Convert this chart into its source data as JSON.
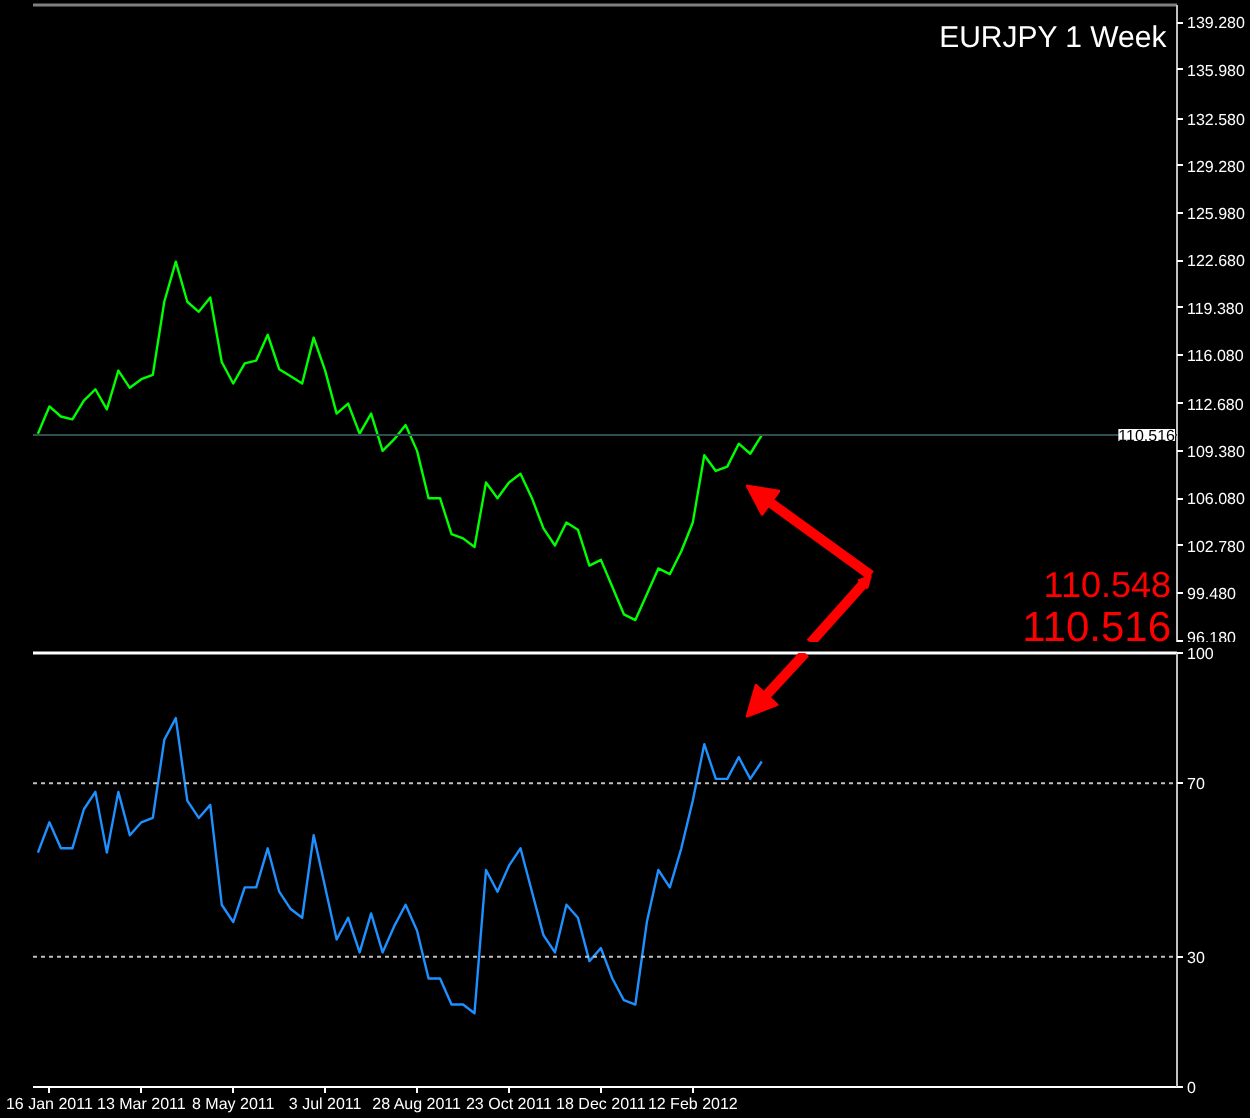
{
  "chart_data": [
    {
      "type": "line",
      "title": "EURJPY 1 Week",
      "x": [
        "2011-01-09",
        "2011-01-16",
        "2011-01-23",
        "2011-01-30",
        "2011-02-06",
        "2011-02-13",
        "2011-02-20",
        "2011-02-27",
        "2011-03-06",
        "2011-03-13",
        "2011-03-20",
        "2011-03-27",
        "2011-04-03",
        "2011-04-10",
        "2011-04-17",
        "2011-04-24",
        "2011-05-01",
        "2011-05-08",
        "2011-05-15",
        "2011-05-22",
        "2011-05-29",
        "2011-06-05",
        "2011-06-12",
        "2011-06-19",
        "2011-06-26",
        "2011-07-03",
        "2011-07-10",
        "2011-07-17",
        "2011-07-24",
        "2011-07-31",
        "2011-08-07",
        "2011-08-14",
        "2011-08-21",
        "2011-08-28",
        "2011-09-04",
        "2011-09-11",
        "2011-09-18",
        "2011-09-25",
        "2011-10-02",
        "2011-10-09",
        "2011-10-16",
        "2011-10-23",
        "2011-10-30",
        "2011-11-06",
        "2011-11-13",
        "2011-11-20",
        "2011-11-27",
        "2011-12-04",
        "2011-12-11",
        "2011-12-18",
        "2011-12-25",
        "2012-01-01",
        "2012-01-08",
        "2012-01-15",
        "2012-01-22",
        "2012-01-29",
        "2012-02-05",
        "2012-02-12",
        "2012-02-19",
        "2012-02-26",
        "2012-03-04",
        "2012-03-11",
        "2012-03-18",
        "2012-03-25"
      ],
      "series": [
        {
          "color": "#00ff00",
          "values": [
            110.6,
            112.5,
            111.8,
            111.6,
            112.9,
            113.7,
            112.3,
            115.0,
            113.8,
            114.4,
            114.7,
            119.8,
            122.6,
            119.8,
            119.1,
            120.1,
            115.6,
            114.1,
            115.5,
            115.7,
            117.5,
            115.1,
            114.6,
            114.1,
            117.3,
            115.0,
            112.0,
            112.7,
            110.6,
            112.0,
            109.4,
            110.2,
            111.2,
            109.4,
            106.1,
            106.1,
            103.6,
            103.3,
            102.7,
            107.2,
            106.1,
            107.2,
            107.8,
            106.1,
            104.0,
            102.8,
            104.4,
            103.9,
            101.4,
            101.8,
            99.9,
            98.0,
            97.6,
            99.4,
            101.2,
            100.8,
            102.4,
            104.4,
            109.1,
            108.0,
            108.3,
            109.9,
            109.2,
            110.5
          ]
        }
      ],
      "xlim": [
        "2011-01-06",
        "2012-12-03"
      ],
      "ylim": [
        96.0,
        140.5
      ],
      "yticks": [
        {
          "value": 96.18,
          "label": "96.180"
        },
        {
          "value": 99.48,
          "label": "99.480"
        },
        {
          "value": 102.78,
          "label": "102.780"
        },
        {
          "value": 106.08,
          "label": "106.080"
        },
        {
          "value": 109.38,
          "label": "109.380"
        },
        {
          "value": 112.68,
          "label": "112.680"
        },
        {
          "value": 116.08,
          "label": "116.080"
        },
        {
          "value": 119.38,
          "label": "119.380"
        },
        {
          "value": 122.68,
          "label": "122.680"
        },
        {
          "value": 125.98,
          "label": "125.980"
        },
        {
          "value": 129.28,
          "label": "129.280"
        },
        {
          "value": 132.58,
          "label": "132.580"
        },
        {
          "value": 135.98,
          "label": "135.980"
        },
        {
          "value": 139.28,
          "label": "139.280"
        }
      ],
      "ref_lines": [
        {
          "axis": "y",
          "value": 110.516,
          "label": "110.516",
          "color": "#2f4f4f"
        }
      ],
      "annotations": [
        "110.548",
        "110.516"
      ],
      "tick_labels": "y"
    },
    {
      "type": "line",
      "x": [
        "2011-01-09",
        "2011-01-16",
        "2011-01-23",
        "2011-01-30",
        "2011-02-06",
        "2011-02-13",
        "2011-02-20",
        "2011-02-27",
        "2011-03-06",
        "2011-03-13",
        "2011-03-20",
        "2011-03-27",
        "2011-04-03",
        "2011-04-10",
        "2011-04-17",
        "2011-04-24",
        "2011-05-01",
        "2011-05-08",
        "2011-05-15",
        "2011-05-22",
        "2011-05-29",
        "2011-06-05",
        "2011-06-12",
        "2011-06-19",
        "2011-06-26",
        "2011-07-03",
        "2011-07-10",
        "2011-07-17",
        "2011-07-24",
        "2011-07-31",
        "2011-08-07",
        "2011-08-14",
        "2011-08-21",
        "2011-08-28",
        "2011-09-04",
        "2011-09-11",
        "2011-09-18",
        "2011-09-25",
        "2011-10-02",
        "2011-10-09",
        "2011-10-16",
        "2011-10-23",
        "2011-10-30",
        "2011-11-06",
        "2011-11-13",
        "2011-11-20",
        "2011-11-27",
        "2011-12-04",
        "2011-12-11",
        "2011-12-18",
        "2011-12-25",
        "2012-01-01",
        "2012-01-08",
        "2012-01-15",
        "2012-01-22",
        "2012-01-29",
        "2012-02-05",
        "2012-02-12",
        "2012-02-19",
        "2012-02-26",
        "2012-03-04",
        "2012-03-11",
        "2012-03-18",
        "2012-03-25"
      ],
      "series": [
        {
          "color": "#1e90ff",
          "values": [
            54,
            61,
            55,
            55,
            64,
            68,
            54,
            68,
            58,
            61,
            62,
            80,
            85,
            66,
            62,
            65,
            42,
            38,
            46,
            46,
            55,
            45,
            41,
            39,
            58,
            46,
            34,
            39,
            31,
            40,
            31,
            37,
            42,
            36,
            25,
            25,
            19,
            19,
            17,
            50,
            45,
            51,
            55,
            45,
            35,
            31,
            42,
            39,
            29,
            32,
            25,
            20,
            19,
            38,
            50,
            46,
            55,
            66,
            79,
            71,
            71,
            76,
            71,
            75
          ]
        }
      ],
      "xlim": [
        "2011-01-06",
        "2012-12-03"
      ],
      "xticks": [
        {
          "value": "2011-01-16",
          "label": "16 Jan 2011"
        },
        {
          "value": "2011-03-13",
          "label": "13 Mar 2011"
        },
        {
          "value": "2011-05-08",
          "label": "8 May 2011"
        },
        {
          "value": "2011-07-03",
          "label": "3 Jul 2011"
        },
        {
          "value": "2011-08-28",
          "label": "28 Aug 2011"
        },
        {
          "value": "2011-10-23",
          "label": "23 Oct 2011"
        },
        {
          "value": "2011-12-18",
          "label": "18 Dec 2011"
        },
        {
          "value": "2012-02-12",
          "label": "12 Feb 2012"
        }
      ],
      "ylim": [
        0,
        100
      ],
      "yticks": [
        0,
        30,
        70,
        100
      ],
      "ref_lines": [
        {
          "axis": "y",
          "value": 70,
          "color": "#c0c0c0",
          "line_style": "dotted"
        },
        {
          "axis": "y",
          "value": 30,
          "color": "#c0c0c0",
          "line_style": "dotted"
        }
      ]
    }
  ]
}
